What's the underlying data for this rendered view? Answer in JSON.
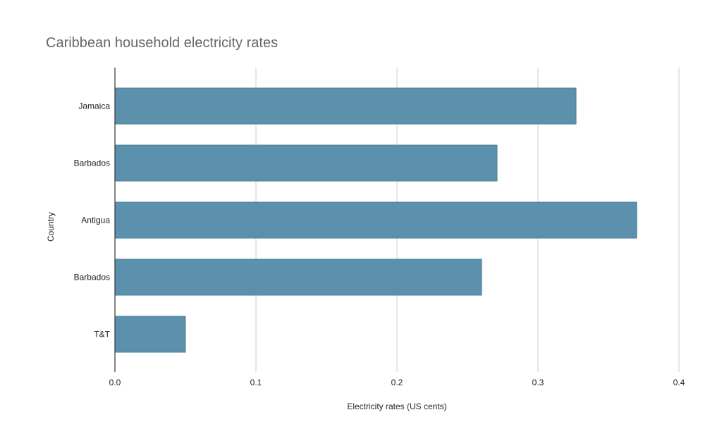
{
  "chart_data": {
    "type": "bar",
    "orientation": "horizontal",
    "title": "Caribbean household electricity rates",
    "xlabel": "Electricity rates (US cents)",
    "ylabel": "Country",
    "categories": [
      "Jamaica",
      "Barbados",
      "Antigua",
      "Barbados",
      "T&T"
    ],
    "values": [
      0.327,
      0.271,
      0.37,
      0.26,
      0.05
    ],
    "xlim": [
      0,
      0.4
    ],
    "xticks": [
      "0.0",
      "0.1",
      "0.2",
      "0.3",
      "0.4"
    ],
    "grid": "vertical",
    "legend": "none",
    "colors": {
      "bar": "#5b91ad",
      "bar_stroke": "#4a7f9a",
      "grid": "#cccccc",
      "axis": "#333333"
    }
  }
}
